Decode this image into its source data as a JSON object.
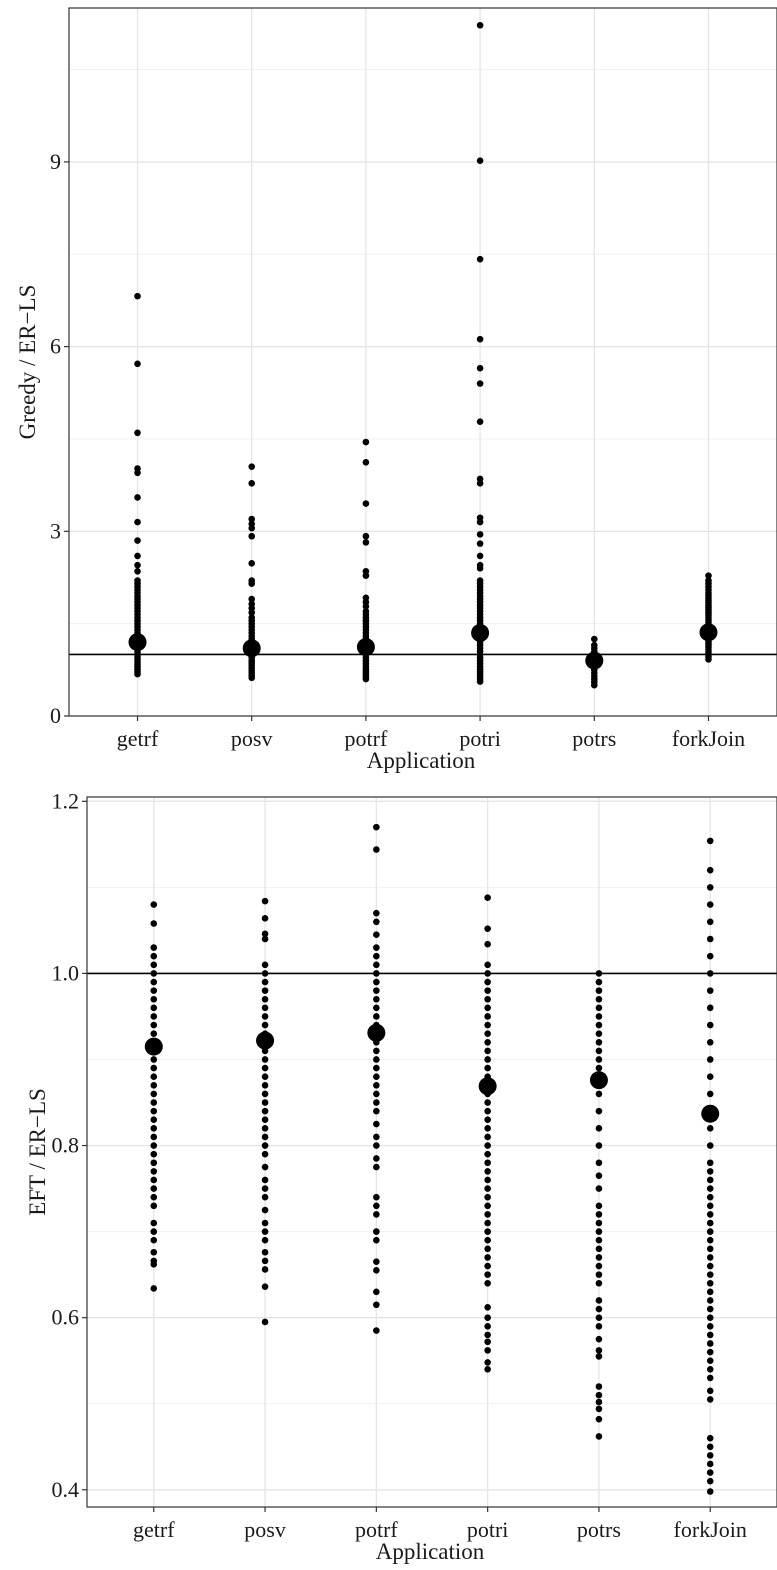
{
  "chart_data": [
    {
      "type": "scatter",
      "title": "",
      "xlabel": "Application",
      "ylabel": "Greedy / ER−LS",
      "categories": [
        "getrf",
        "posv",
        "potrf",
        "potri",
        "potrs",
        "forkJoin"
      ],
      "ylim": [
        0,
        11.5
      ],
      "yticks": [
        0,
        3,
        6,
        9
      ],
      "grid": true,
      "reference_line": 1.0,
      "means": [
        1.2,
        1.1,
        1.12,
        1.35,
        0.9,
        1.36
      ],
      "points": [
        [
          0.68,
          0.72,
          0.76,
          0.8,
          0.84,
          0.88,
          0.92,
          0.96,
          1.0,
          1.04,
          1.08,
          1.12,
          1.16,
          1.2,
          1.25,
          1.3,
          1.35,
          1.4,
          1.45,
          1.5,
          1.55,
          1.6,
          1.65,
          1.7,
          1.75,
          1.8,
          1.85,
          1.9,
          1.95,
          2.0,
          2.05,
          2.1,
          2.15,
          2.2,
          2.35,
          2.45,
          2.6,
          2.85,
          3.15,
          3.55,
          3.95,
          4.02,
          4.6,
          5.72,
          6.82
        ],
        [
          0.62,
          0.66,
          0.7,
          0.74,
          0.78,
          0.82,
          0.86,
          0.9,
          0.95,
          1.0,
          1.05,
          1.1,
          1.15,
          1.2,
          1.25,
          1.3,
          1.35,
          1.4,
          1.45,
          1.5,
          1.55,
          1.6,
          1.68,
          1.75,
          1.82,
          1.9,
          2.15,
          2.2,
          2.48,
          2.92,
          3.05,
          3.12,
          3.2,
          3.78,
          4.05
        ],
        [
          0.6,
          0.64,
          0.68,
          0.72,
          0.76,
          0.8,
          0.85,
          0.9,
          0.95,
          1.0,
          1.05,
          1.1,
          1.15,
          1.2,
          1.25,
          1.3,
          1.35,
          1.4,
          1.45,
          1.5,
          1.55,
          1.6,
          1.65,
          1.7,
          1.78,
          1.85,
          1.92,
          2.28,
          2.35,
          2.82,
          2.92,
          3.45,
          4.12,
          4.45
        ],
        [
          0.56,
          0.6,
          0.64,
          0.68,
          0.72,
          0.76,
          0.8,
          0.85,
          0.9,
          0.95,
          1.0,
          1.05,
          1.1,
          1.15,
          1.2,
          1.25,
          1.3,
          1.35,
          1.4,
          1.45,
          1.5,
          1.55,
          1.6,
          1.65,
          1.7,
          1.75,
          1.8,
          1.85,
          1.9,
          1.95,
          2.0,
          2.05,
          2.1,
          2.15,
          2.2,
          2.4,
          2.45,
          2.6,
          2.8,
          2.95,
          3.15,
          3.22,
          3.78,
          3.85,
          4.78,
          5.4,
          5.65,
          6.12,
          7.42,
          9.02,
          11.22
        ],
        [
          0.5,
          0.55,
          0.6,
          0.65,
          0.7,
          0.75,
          0.8,
          0.85,
          0.9,
          0.95,
          1.0,
          1.05,
          1.1,
          1.15,
          1.25
        ],
        [
          0.92,
          0.96,
          1.0,
          1.04,
          1.08,
          1.12,
          1.16,
          1.2,
          1.24,
          1.28,
          1.32,
          1.36,
          1.4,
          1.44,
          1.48,
          1.52,
          1.56,
          1.6,
          1.64,
          1.68,
          1.72,
          1.76,
          1.8,
          1.84,
          1.88,
          1.92,
          1.96,
          2.0,
          2.05,
          2.1,
          2.15,
          2.2,
          2.28
        ]
      ]
    },
    {
      "type": "scatter",
      "title": "",
      "xlabel": "Application",
      "ylabel": "EFT / ER−LS",
      "categories": [
        "getrf",
        "posv",
        "potrf",
        "potri",
        "potrs",
        "forkJoin"
      ],
      "ylim": [
        0.38,
        1.205
      ],
      "yticks": [
        0.4,
        0.6,
        0.8,
        1.0,
        1.2
      ],
      "ytick_labels": [
        "0.4",
        "0.6",
        "0.8",
        "1.0",
        "1.2"
      ],
      "grid": true,
      "reference_line": 1.0,
      "means": [
        0.915,
        0.922,
        0.931,
        0.869,
        0.876,
        0.837
      ],
      "points": [
        [
          0.634,
          0.662,
          0.666,
          0.676,
          0.69,
          0.7,
          0.71,
          0.73,
          0.74,
          0.75,
          0.76,
          0.77,
          0.78,
          0.79,
          0.8,
          0.81,
          0.82,
          0.83,
          0.84,
          0.85,
          0.86,
          0.87,
          0.88,
          0.89,
          0.9,
          0.91,
          0.92,
          0.93,
          0.94,
          0.95,
          0.96,
          0.97,
          0.98,
          0.99,
          1.0,
          1.01,
          1.02,
          1.03,
          1.058,
          1.08
        ],
        [
          0.595,
          0.636,
          0.656,
          0.666,
          0.676,
          0.69,
          0.7,
          0.71,
          0.725,
          0.74,
          0.75,
          0.76,
          0.775,
          0.79,
          0.8,
          0.81,
          0.82,
          0.83,
          0.84,
          0.85,
          0.86,
          0.87,
          0.88,
          0.89,
          0.9,
          0.91,
          0.92,
          0.93,
          0.94,
          0.95,
          0.96,
          0.97,
          0.98,
          0.99,
          1.0,
          1.01,
          1.04,
          1.046,
          1.064,
          1.084
        ],
        [
          0.585,
          0.615,
          0.63,
          0.655,
          0.665,
          0.69,
          0.7,
          0.72,
          0.73,
          0.74,
          0.775,
          0.785,
          0.8,
          0.81,
          0.825,
          0.84,
          0.85,
          0.86,
          0.87,
          0.88,
          0.89,
          0.9,
          0.91,
          0.92,
          0.93,
          0.94,
          0.95,
          0.96,
          0.97,
          0.98,
          0.99,
          1.0,
          1.01,
          1.02,
          1.03,
          1.045,
          1.06,
          1.07,
          1.144,
          1.17
        ],
        [
          0.54,
          0.548,
          0.562,
          0.572,
          0.58,
          0.59,
          0.6,
          0.612,
          0.64,
          0.65,
          0.66,
          0.67,
          0.68,
          0.69,
          0.7,
          0.71,
          0.72,
          0.73,
          0.74,
          0.75,
          0.76,
          0.77,
          0.78,
          0.79,
          0.8,
          0.81,
          0.82,
          0.83,
          0.84,
          0.85,
          0.86,
          0.87,
          0.88,
          0.89,
          0.9,
          0.91,
          0.92,
          0.93,
          0.94,
          0.95,
          0.96,
          0.97,
          0.98,
          0.99,
          1.0,
          1.01,
          1.034,
          1.052,
          1.088
        ],
        [
          0.462,
          0.482,
          0.494,
          0.502,
          0.51,
          0.52,
          0.555,
          0.562,
          0.575,
          0.59,
          0.6,
          0.61,
          0.62,
          0.64,
          0.65,
          0.66,
          0.67,
          0.68,
          0.69,
          0.7,
          0.71,
          0.72,
          0.73,
          0.75,
          0.765,
          0.78,
          0.8,
          0.82,
          0.84,
          0.86,
          0.87,
          0.88,
          0.89,
          0.9,
          0.91,
          0.92,
          0.93,
          0.94,
          0.95,
          0.96,
          0.97,
          0.98,
          0.99,
          1.0
        ],
        [
          0.398,
          0.41,
          0.42,
          0.43,
          0.44,
          0.45,
          0.46,
          0.505,
          0.515,
          0.53,
          0.54,
          0.55,
          0.56,
          0.57,
          0.58,
          0.59,
          0.6,
          0.61,
          0.62,
          0.63,
          0.64,
          0.65,
          0.66,
          0.67,
          0.68,
          0.69,
          0.7,
          0.71,
          0.72,
          0.73,
          0.74,
          0.75,
          0.76,
          0.77,
          0.78,
          0.8,
          0.82,
          0.84,
          0.86,
          0.88,
          0.9,
          0.92,
          0.94,
          0.96,
          0.98,
          1.0,
          1.02,
          1.04,
          1.06,
          1.08,
          1.1,
          1.12,
          1.154
        ]
      ]
    }
  ]
}
